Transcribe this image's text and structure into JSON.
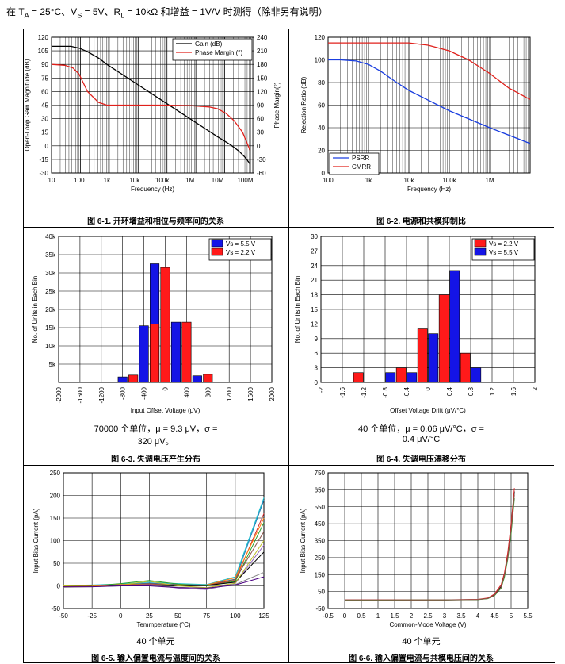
{
  "header": {
    "prefix": "在 T",
    "a_sub": "A",
    "mid1": " = 25°C、V",
    "s_sub": "S",
    "mid2": " = 5V、R",
    "l_sub": "L",
    "suffix": " = 10kΩ 和增益 = 1V/V 时测得（除非另有说明）"
  },
  "captions": {
    "fig1": "图 6-1. 开环增益和相位与频率间的关系",
    "fig2": "图 6-2. 电源和共模抑制比",
    "fig3": "图 6-3. 失调电压产生分布",
    "fig4": "图 6-4. 失调电压漂移分布",
    "fig5": "图 6-5. 输入偏置电流与温度间的关系",
    "fig6": "图 6-6. 输入偏置电流与共模电压间的关系"
  },
  "notes": {
    "fig3_line1": "70000 个单位，μ = 9.3 μV，σ =",
    "fig3_line2": "320 μV。",
    "fig4_line1": "40 个单位，μ = 0.06 μV/°C，σ =",
    "fig4_line2": "0.4 μV/°C",
    "fig5": "40 个单元",
    "fig6": "40 个单元"
  },
  "chart_data": [
    {
      "id": "fig1",
      "type": "line",
      "xlabel": "Frequency (Hz)",
      "ylabel": "Open-Loop Gain Magnitude (dB)",
      "y2label": "Phase Margin(°)",
      "xscale": "log",
      "xlim": [
        10,
        200000000
      ],
      "xticks": [
        "10",
        "100",
        "1k",
        "10k",
        "100k",
        "1M",
        "10M",
        "100M"
      ],
      "ylim": [
        -30,
        120
      ],
      "yticks": [
        -30,
        -15,
        0,
        15,
        30,
        45,
        60,
        75,
        90,
        105,
        120
      ],
      "y2lim": [
        -60,
        240
      ],
      "y2ticks": [
        -60,
        -30,
        0,
        30,
        60,
        90,
        120,
        150,
        180,
        210,
        240
      ],
      "legend": "top-right",
      "series": [
        {
          "name": "Gain (dB)",
          "color": "#000000",
          "axis": "left",
          "x": [
            10,
            50,
            100,
            200,
            500,
            1000,
            10000,
            100000,
            1000000,
            10000000,
            30000000,
            60000000,
            100000000,
            150000000
          ],
          "y": [
            110,
            110,
            108,
            104,
            97,
            90,
            70,
            50,
            30,
            10,
            1,
            -6,
            -13,
            -20
          ]
        },
        {
          "name": "Phase Margin (°)",
          "color": "#e0201b",
          "axis": "right",
          "x": [
            10,
            30,
            60,
            100,
            200,
            500,
            1000,
            10000,
            100000,
            1000000,
            5000000,
            10000000,
            20000000,
            40000000,
            80000000,
            150000000
          ],
          "y": [
            180,
            178,
            172,
            158,
            120,
            96,
            90,
            90,
            90,
            89,
            86,
            82,
            72,
            55,
            30,
            -10
          ]
        }
      ]
    },
    {
      "id": "fig2",
      "type": "line",
      "xlabel": "Frequency (Hz)",
      "ylabel": "Rejection Ratio (dB)",
      "xscale": "log",
      "xlim": [
        100,
        10000000
      ],
      "xticks": [
        "100",
        "1k",
        "10k",
        "100k",
        "1M"
      ],
      "ylim": [
        0,
        120
      ],
      "yticks": [
        0,
        20,
        40,
        60,
        80,
        100,
        120
      ],
      "legend": "bottom-left",
      "series": [
        {
          "name": "PSRR",
          "color": "#1a3ee0",
          "x": [
            100,
            200,
            500,
            1000,
            2000,
            5000,
            10000,
            100000,
            1000000,
            10000000
          ],
          "y": [
            100,
            100,
            99,
            96,
            90,
            80,
            73,
            55,
            40,
            26
          ]
        },
        {
          "name": "CMRR",
          "color": "#e0201b",
          "x": [
            100,
            1000,
            10000,
            30000,
            100000,
            300000,
            1000000,
            3000000,
            10000000
          ],
          "y": [
            115,
            115,
            115,
            113,
            108,
            100,
            88,
            75,
            65
          ]
        }
      ]
    },
    {
      "id": "fig3",
      "type": "bar",
      "xlabel": "Input Offset Voltage (μV)",
      "ylabel": "No. of Units in Each Bin",
      "xlim": [
        -2000,
        2000
      ],
      "xticks": [
        "-2000",
        "-1600",
        "-1200",
        "-800",
        "-400",
        "0",
        "400",
        "800",
        "1200",
        "1600",
        "2000"
      ],
      "ylim": [
        0,
        40000
      ],
      "yticks": [
        "",
        "5k",
        "10k",
        "15k",
        "20k",
        "25k",
        "30k",
        "35k",
        "40k"
      ],
      "legend": "top-right",
      "series": [
        {
          "name": "V_S = 5.5 V",
          "color": "#1414e6",
          "bins": [
            -800,
            -400,
            -200,
            200,
            600
          ],
          "values": [
            1500,
            15500,
            32500,
            16500,
            1800
          ]
        },
        {
          "name": "V_S = 2.2 V",
          "color": "#ff1a1a",
          "bins": [
            -600,
            -200,
            0,
            400,
            800
          ],
          "values": [
            2000,
            16000,
            31500,
            16500,
            2200
          ]
        }
      ]
    },
    {
      "id": "fig4",
      "type": "bar",
      "xlabel": "Offset Voltage Drift (μV/°C)",
      "ylabel": "No. of Units in Each Bin",
      "xlim": [
        -2,
        2
      ],
      "xticks": [
        "-2",
        "-1.6",
        "-1.2",
        "-0.8",
        "-0.4",
        "0",
        "0.4",
        "0.8",
        "1.2",
        "1.6",
        "2"
      ],
      "ylim": [
        0,
        30
      ],
      "yticks": [
        0,
        3,
        6,
        9,
        12,
        15,
        18,
        21,
        24,
        27,
        30
      ],
      "legend": "top-right",
      "series": [
        {
          "name": "V_S = 2.2 V",
          "color": "#ff1a1a",
          "bins": [
            -1.3,
            -0.5,
            -0.1,
            0.3,
            0.7
          ],
          "values": [
            2,
            3,
            11,
            18,
            6
          ]
        },
        {
          "name": "V_S = 5.5 V",
          "color": "#1414e6",
          "bins": [
            -0.7,
            -0.3,
            0.1,
            0.5,
            0.9
          ],
          "values": [
            2,
            2,
            10,
            23,
            3
          ]
        }
      ]
    },
    {
      "id": "fig5",
      "type": "line",
      "xlabel": "Temmperature (°C)",
      "ylabel": "Input Bias Current (pA)",
      "xlim": [
        -50,
        125
      ],
      "xticks": [
        -50,
        -25,
        0,
        25,
        50,
        75,
        100,
        125
      ],
      "ylim": [
        -50,
        250
      ],
      "yticks": [
        -50,
        0,
        50,
        100,
        150,
        200,
        250
      ],
      "x": [
        -50,
        -25,
        0,
        25,
        50,
        75,
        100,
        125
      ],
      "series": [
        {
          "color": "#1f77b4",
          "values": [
            0,
            1,
            3,
            6,
            3,
            2,
            15,
            190
          ]
        },
        {
          "color": "#17becf",
          "values": [
            1,
            2,
            4,
            8,
            5,
            3,
            20,
            195
          ]
        },
        {
          "color": "#d62728",
          "values": [
            -1,
            0,
            2,
            4,
            2,
            1,
            12,
            160
          ]
        },
        {
          "color": "#2ca02c",
          "values": [
            0,
            0,
            5,
            12,
            4,
            0,
            10,
            140
          ]
        },
        {
          "color": "#9467bd",
          "values": [
            -2,
            -1,
            1,
            3,
            -5,
            -8,
            5,
            90
          ]
        },
        {
          "color": "#8c564b",
          "values": [
            -1,
            -1,
            2,
            5,
            1,
            2,
            14,
            120
          ]
        },
        {
          "color": "#000000",
          "values": [
            -1,
            0,
            1,
            2,
            0,
            1,
            8,
            75
          ]
        },
        {
          "color": "#bcbd22",
          "values": [
            0,
            1,
            2,
            10,
            0,
            -4,
            6,
            100
          ]
        },
        {
          "color": "#ff7f0e",
          "values": [
            -2,
            -1,
            3,
            2,
            2,
            2,
            18,
            150
          ]
        },
        {
          "color": "#7f7f7f",
          "values": [
            -3,
            -2,
            0,
            1,
            -3,
            -6,
            3,
            30
          ]
        },
        {
          "color": "#4b0082",
          "values": [
            -2,
            -2,
            0,
            0,
            -4,
            -5,
            2,
            20
          ]
        }
      ]
    },
    {
      "id": "fig6",
      "type": "line",
      "xlabel": "Common-Mode Voltage (V)",
      "ylabel": "Input Bias Current (pA)",
      "xlim": [
        -0.5,
        5.5
      ],
      "xticks": [
        "-0.5",
        "0",
        "0.5",
        "1",
        "1.5",
        "2",
        "2.5",
        "3",
        "3.5",
        "4",
        "4.5",
        "5",
        "5.5"
      ],
      "ylim": [
        -50,
        750
      ],
      "yticks": [
        -50,
        50,
        150,
        250,
        350,
        450,
        550,
        650,
        750
      ],
      "x": [
        0,
        1,
        2,
        3,
        4,
        4.3,
        4.5,
        4.7,
        4.8,
        4.9,
        5,
        5.1
      ],
      "series": [
        {
          "color": "#000000",
          "values": [
            0,
            0,
            0,
            0,
            3,
            10,
            30,
            80,
            150,
            260,
            420,
            640
          ]
        },
        {
          "color": "#d62728",
          "values": [
            1,
            1,
            1,
            1,
            4,
            12,
            35,
            90,
            160,
            280,
            450,
            660
          ]
        },
        {
          "color": "#2ca02c",
          "values": [
            -1,
            -1,
            0,
            0,
            2,
            8,
            25,
            70,
            135,
            240,
            390,
            600
          ]
        },
        {
          "color": "#8c564b",
          "values": [
            0,
            0,
            0,
            1,
            3,
            9,
            28,
            75,
            145,
            250,
            410,
            620
          ]
        }
      ]
    }
  ]
}
